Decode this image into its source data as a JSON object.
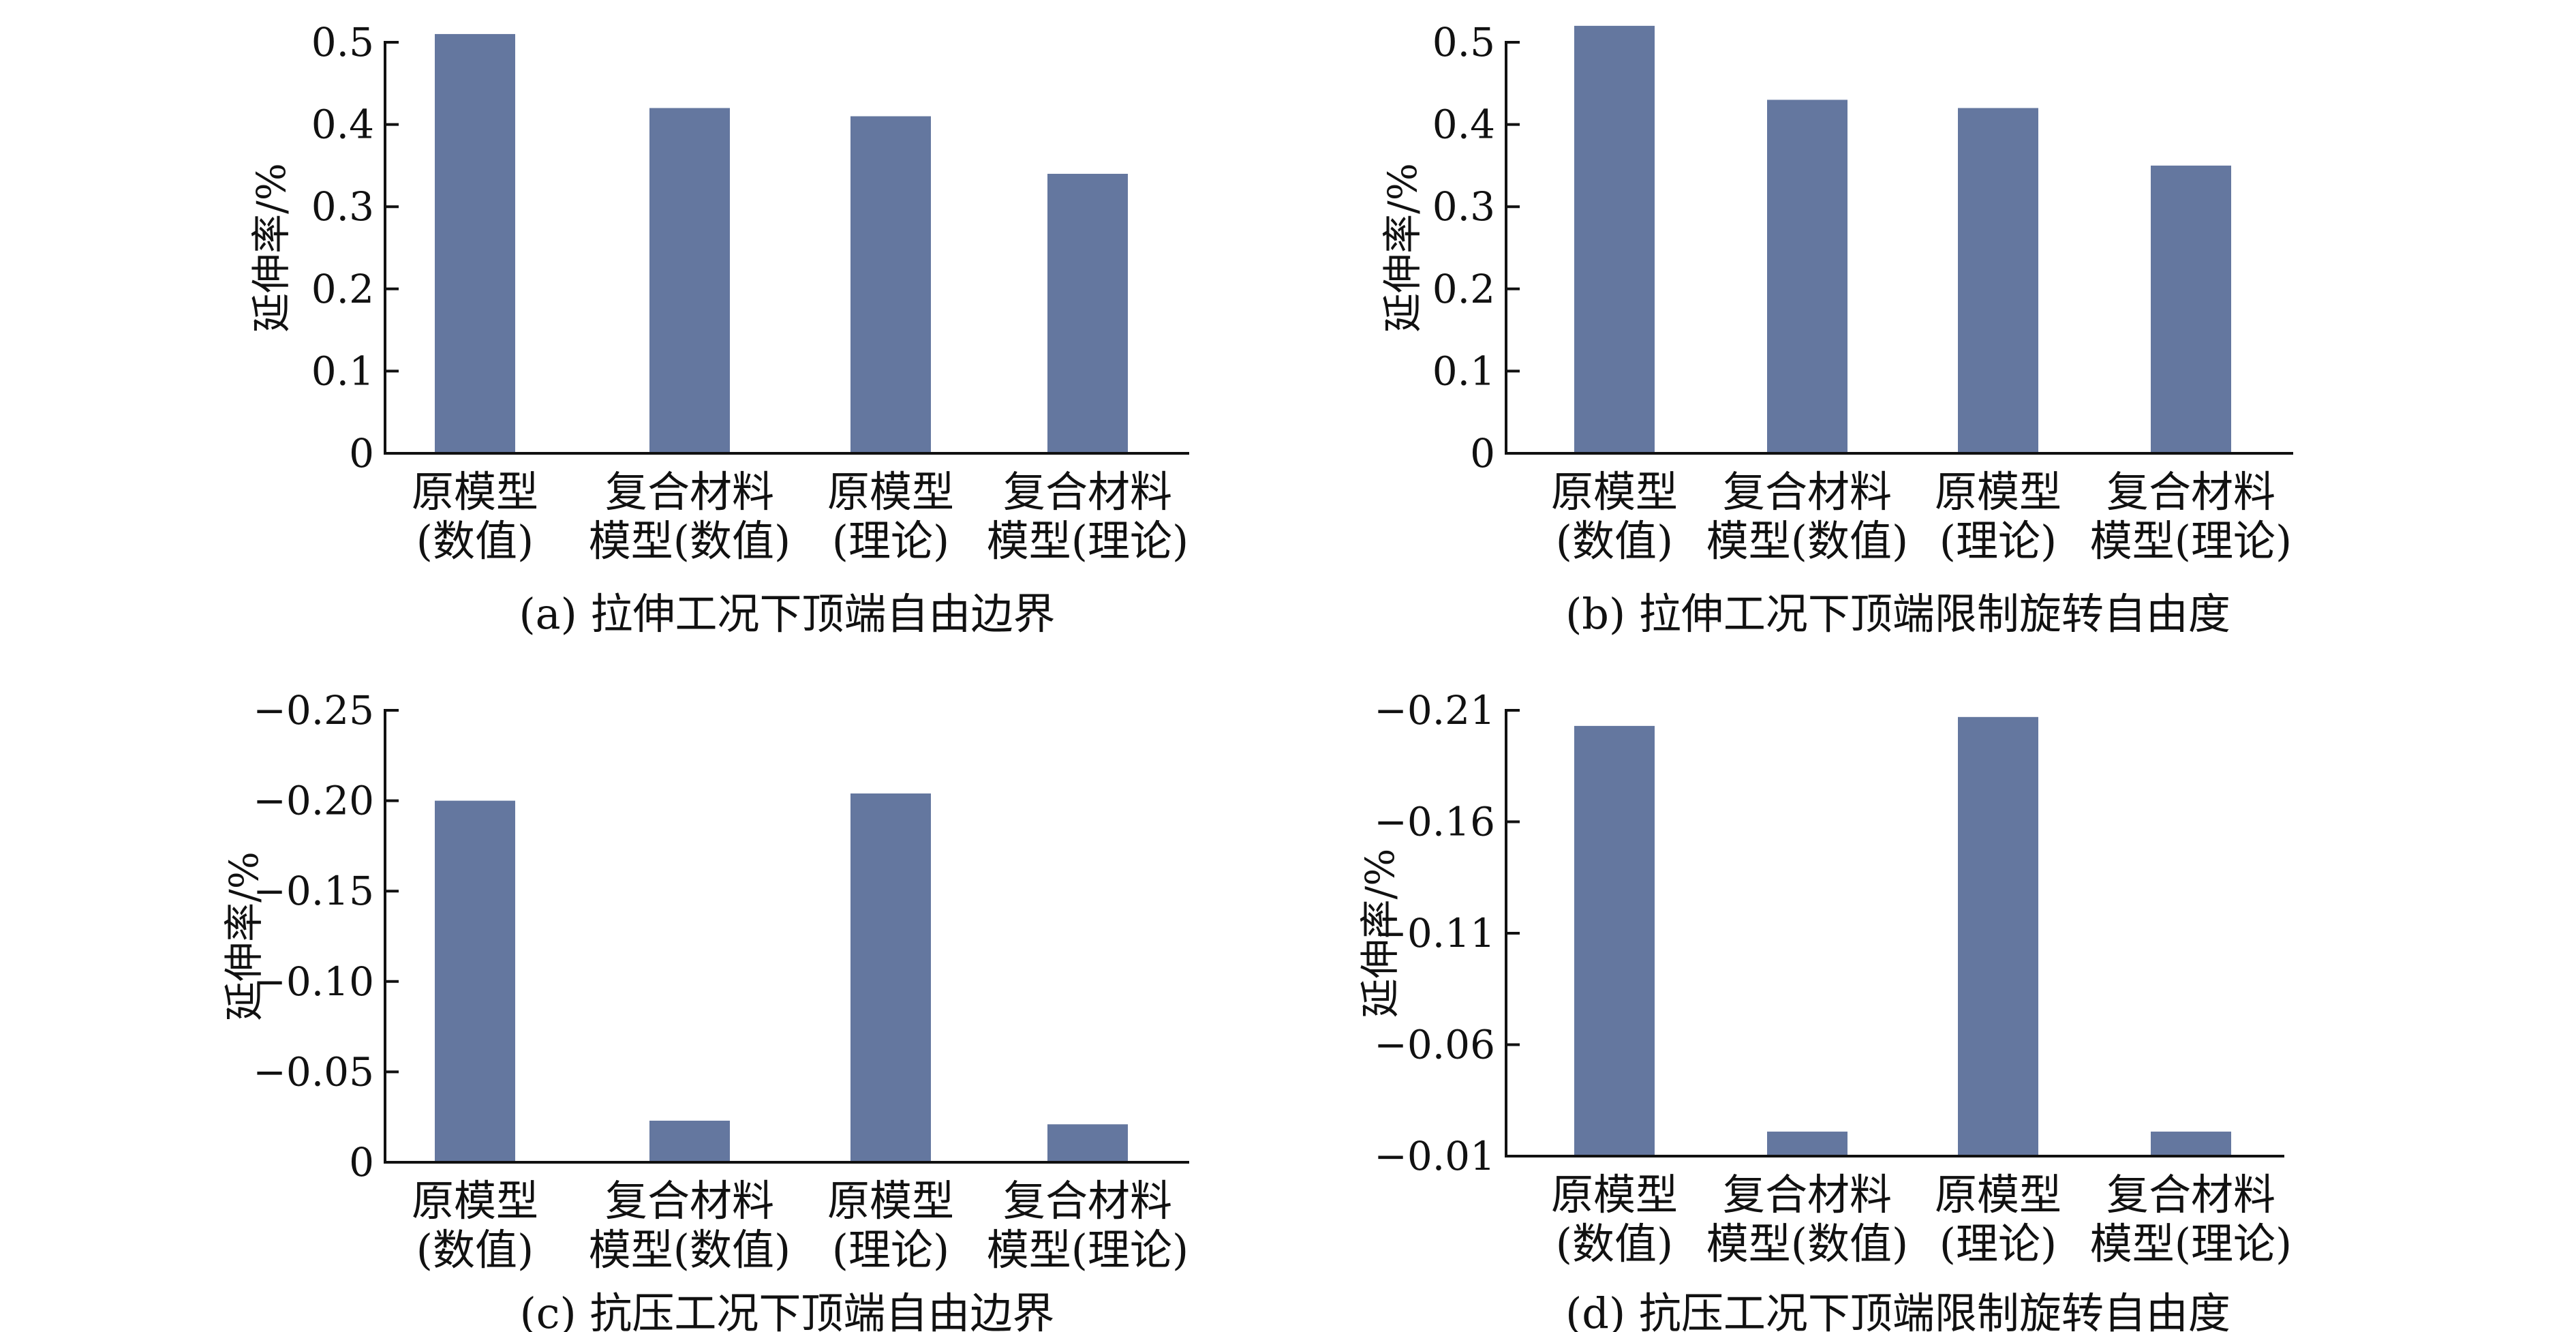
{
  "chart_data": [
    {
      "type": "bar",
      "caption": "(a) 拉伸工况下顶端自由边界",
      "ylabel": "延伸率/%",
      "categories": [
        [
          "原模型",
          "(数值)"
        ],
        [
          "复合材料",
          "模型(数值)"
        ],
        [
          "原模型",
          "(理论)"
        ],
        [
          "复合材料",
          "模型(理论)"
        ]
      ],
      "values": [
        0.51,
        0.42,
        0.41,
        0.34
      ],
      "ylim": [
        0,
        0.5
      ],
      "yticks": [
        0,
        0.1,
        0.2,
        0.3,
        0.4,
        0.5
      ],
      "yticklabels": [
        "0",
        "0.1",
        "0.2",
        "0.3",
        "0.4",
        "0.5"
      ],
      "grid": false,
      "bar_color": "#64779f"
    },
    {
      "type": "bar",
      "caption": "(b) 拉伸工况下顶端限制旋转自由度",
      "ylabel": "延伸率/%",
      "categories": [
        [
          "原模型",
          "(数值)"
        ],
        [
          "复合材料",
          "模型(数值)"
        ],
        [
          "原模型",
          "(理论)"
        ],
        [
          "复合材料",
          "模型(理论)"
        ]
      ],
      "values": [
        0.52,
        0.43,
        0.42,
        0.35
      ],
      "ylim": [
        0,
        0.5
      ],
      "yticks": [
        0,
        0.1,
        0.2,
        0.3,
        0.4,
        0.5
      ],
      "yticklabels": [
        "0",
        "0.1",
        "0.2",
        "0.3",
        "0.4",
        "0.5"
      ],
      "grid": false,
      "bar_color": "#64779f"
    },
    {
      "type": "bar",
      "caption": "(c) 抗压工况下顶端自由边界",
      "ylabel": "延伸率/%",
      "categories": [
        [
          "原模型",
          "(数值)"
        ],
        [
          "复合材料",
          "模型(数值)"
        ],
        [
          "原模型",
          "(理论)"
        ],
        [
          "复合材料",
          "模型(理论)"
        ]
      ],
      "values": [
        -0.2,
        -0.023,
        -0.204,
        -0.021
      ],
      "ylim": [
        0,
        -0.25
      ],
      "yticks": [
        0,
        -0.05,
        -0.1,
        -0.15,
        -0.2,
        -0.25
      ],
      "yticklabels": [
        "0",
        "−0.05",
        "−0.10",
        "−0.15",
        "−0.20",
        "−0.25"
      ],
      "grid": false,
      "bar_color": "#64779f"
    },
    {
      "type": "bar",
      "caption": "(d) 抗压工况下顶端限制旋转自由度",
      "ylabel": "延伸率/%",
      "categories": [
        [
          "原模型",
          "(数值)"
        ],
        [
          "复合材料",
          "模型(数值)"
        ],
        [
          "原模型",
          "(理论)"
        ],
        [
          "复合材料",
          "模型(理论)"
        ]
      ],
      "values": [
        -0.203,
        -0.021,
        -0.207,
        -0.021
      ],
      "ylim": [
        -0.01,
        -0.21
      ],
      "yticks": [
        -0.01,
        -0.06,
        -0.11,
        -0.16,
        -0.21
      ],
      "yticklabels": [
        "−0.01",
        "−0.06",
        "−0.11",
        "−0.16",
        "−0.21"
      ],
      "grid": false,
      "bar_color": "#64779f"
    }
  ]
}
